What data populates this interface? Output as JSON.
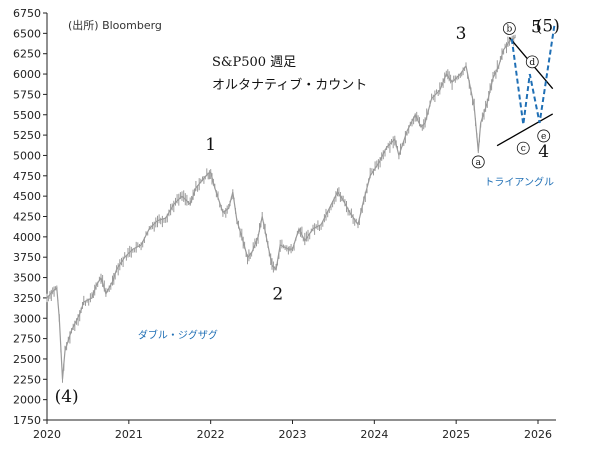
{
  "source_note": "(出所) Bloomberg",
  "chart_title_line1": "S&P500 週足",
  "chart_title_line2": "オルタナティブ・カウント",
  "colors": {
    "price": "#9a9a9a",
    "axis": "#222222",
    "channel": "#000000",
    "forecast": "#1f6fb5",
    "note": "#1f6fb5"
  },
  "chart_data": {
    "type": "line",
    "title": "S&P500 週足",
    "subtitle": "オルタナティブ・カウント",
    "xlabel": "",
    "ylabel": "",
    "xlim": [
      2020.0,
      2026.22
    ],
    "ylim": [
      1750,
      6750
    ],
    "y_ticks": [
      1750,
      2000,
      2250,
      2500,
      2750,
      3000,
      3250,
      3500,
      3750,
      4000,
      4250,
      4500,
      4750,
      5000,
      5250,
      5500,
      5750,
      6000,
      6250,
      6500,
      6750
    ],
    "x_ticks": [
      {
        "x": 2020,
        "label": "2020"
      },
      {
        "x": 2021,
        "label": "2021"
      },
      {
        "x": 2022,
        "label": "2022"
      },
      {
        "x": 2023,
        "label": "2023"
      },
      {
        "x": 2024,
        "label": "2024"
      },
      {
        "x": 2025,
        "label": "2025"
      },
      {
        "x": 2026,
        "label": "2026"
      }
    ],
    "grid": false,
    "series": [
      {
        "values": [
          [
            2020.0,
            3250
          ],
          [
            2020.07,
            3330
          ],
          [
            2020.12,
            3370
          ],
          [
            2020.15,
            3000
          ],
          [
            2020.19,
            2250
          ],
          [
            2020.22,
            2600
          ],
          [
            2020.3,
            2850
          ],
          [
            2020.4,
            3050
          ],
          [
            2020.45,
            3200
          ],
          [
            2020.55,
            3250
          ],
          [
            2020.6,
            3400
          ],
          [
            2020.66,
            3500
          ],
          [
            2020.72,
            3300
          ],
          [
            2020.8,
            3450
          ],
          [
            2020.85,
            3600
          ],
          [
            2020.95,
            3750
          ],
          [
            2021.05,
            3850
          ],
          [
            2021.15,
            3900
          ],
          [
            2021.25,
            4100
          ],
          [
            2021.35,
            4200
          ],
          [
            2021.45,
            4230
          ],
          [
            2021.55,
            4400
          ],
          [
            2021.65,
            4500
          ],
          [
            2021.75,
            4400
          ],
          [
            2021.82,
            4600
          ],
          [
            2021.9,
            4700
          ],
          [
            2021.97,
            4780
          ],
          [
            2022.0,
            4790
          ],
          [
            2022.05,
            4600
          ],
          [
            2022.15,
            4300
          ],
          [
            2022.22,
            4350
          ],
          [
            2022.27,
            4550
          ],
          [
            2022.32,
            4200
          ],
          [
            2022.38,
            4000
          ],
          [
            2022.45,
            3750
          ],
          [
            2022.5,
            3800
          ],
          [
            2022.58,
            4000
          ],
          [
            2022.63,
            4250
          ],
          [
            2022.7,
            3900
          ],
          [
            2022.75,
            3650
          ],
          [
            2022.8,
            3600
          ],
          [
            2022.85,
            3900
          ],
          [
            2022.95,
            3850
          ],
          [
            2023.0,
            3850
          ],
          [
            2023.08,
            4100
          ],
          [
            2023.15,
            3950
          ],
          [
            2023.25,
            4100
          ],
          [
            2023.35,
            4150
          ],
          [
            2023.45,
            4350
          ],
          [
            2023.55,
            4550
          ],
          [
            2023.62,
            4450
          ],
          [
            2023.7,
            4300
          ],
          [
            2023.8,
            4150
          ],
          [
            2023.87,
            4450
          ],
          [
            2023.95,
            4750
          ],
          [
            2024.05,
            4900
          ],
          [
            2024.15,
            5100
          ],
          [
            2024.25,
            5200
          ],
          [
            2024.3,
            5000
          ],
          [
            2024.4,
            5300
          ],
          [
            2024.5,
            5500
          ],
          [
            2024.57,
            5350
          ],
          [
            2024.62,
            5400
          ],
          [
            2024.7,
            5700
          ],
          [
            2024.8,
            5800
          ],
          [
            2024.88,
            6000
          ],
          [
            2024.95,
            5900
          ],
          [
            2025.05,
            6000
          ],
          [
            2025.12,
            6100
          ],
          [
            2025.18,
            5800
          ],
          [
            2025.22,
            5600
          ],
          [
            2025.27,
            5050
          ],
          [
            2025.3,
            5400
          ],
          [
            2025.38,
            5650
          ],
          [
            2025.45,
            5950
          ],
          [
            2025.52,
            6100
          ],
          [
            2025.58,
            6300
          ],
          [
            2025.65,
            6400
          ],
          [
            2025.72,
            6450
          ]
        ]
      }
    ],
    "wave_labels": [
      {
        "text": "(4)",
        "x": 2020.24,
        "y": 1970
      },
      {
        "text": "1",
        "x": 2022.0,
        "y": 5070
      },
      {
        "text": "2",
        "x": 2022.82,
        "y": 3230
      },
      {
        "text": "3",
        "x": 2025.06,
        "y": 6430
      },
      {
        "text": "4",
        "x": 2026.07,
        "y": 4980
      },
      {
        "text": "5",
        "x": 2025.98,
        "y": 6510
      },
      {
        "text": "(5)",
        "x": 2026.12,
        "y": 6520
      }
    ],
    "subwave_labels": [
      {
        "text": "a",
        "x": 2025.27,
        "y": 4920
      },
      {
        "text": "b",
        "x": 2025.65,
        "y": 6560
      },
      {
        "text": "c",
        "x": 2025.82,
        "y": 5090
      },
      {
        "text": "d",
        "x": 2025.93,
        "y": 6150
      },
      {
        "text": "e",
        "x": 2026.07,
        "y": 5240
      }
    ],
    "annotations": [
      {
        "text": "ダブル・ジグザグ",
        "x": 2021.6,
        "y": 2750
      },
      {
        "text": "トライアングル",
        "x": 2025.77,
        "y": 4630
      }
    ],
    "triangle_lines": [
      {
        "x1": 2025.65,
        "y1": 6450,
        "x2": 2026.18,
        "y2": 5820
      },
      {
        "x1": 2025.5,
        "y1": 5120,
        "x2": 2026.18,
        "y2": 5510
      }
    ],
    "forecast_path": [
      [
        2025.68,
        6430
      ],
      [
        2025.82,
        5380
      ],
      [
        2025.9,
        6000
      ],
      [
        2026.02,
        5400
      ],
      [
        2026.2,
        6600
      ]
    ]
  }
}
